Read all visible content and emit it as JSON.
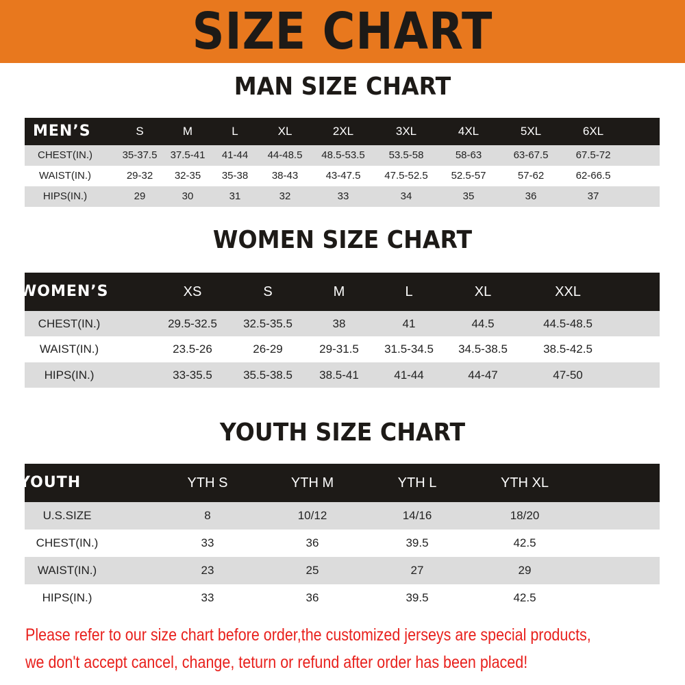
{
  "title": "SIZE CHART",
  "colors": {
    "banner": "#e8781e",
    "header_row": "#1d1a17",
    "alt_row": "#dcdcdc",
    "note": "#e8201c"
  },
  "men": {
    "title": "MAN SIZE CHART",
    "header": [
      "MEN’S",
      "S",
      "M",
      "L",
      "XL",
      "2XL",
      "3XL",
      "4XL",
      "5XL",
      "6XL"
    ],
    "rows": [
      [
        "CHEST(IN.)",
        "35-37.5",
        "37.5-41",
        "41-44",
        "44-48.5",
        "48.5-53.5",
        "53.5-58",
        "58-63",
        "63-67.5",
        "67.5-72"
      ],
      [
        "WAIST(IN.)",
        "29-32",
        "32-35",
        "35-38",
        "38-43",
        "43-47.5",
        "47.5-52.5",
        "52.5-57",
        "57-62",
        "62-66.5"
      ],
      [
        "HIPS(IN.)",
        "29",
        "30",
        "31",
        "32",
        "33",
        "34",
        "35",
        "36",
        "37"
      ]
    ]
  },
  "women": {
    "title": "WOMEN SIZE CHART",
    "header": [
      "WOMEN’S",
      "XS",
      "S",
      "M",
      "L",
      "XL",
      "XXL"
    ],
    "rows": [
      [
        "CHEST(IN.)",
        "29.5-32.5",
        "32.5-35.5",
        "38",
        "41",
        "44.5",
        "44.5-48.5"
      ],
      [
        "WAIST(IN.)",
        "23.5-26",
        "26-29",
        "29-31.5",
        "31.5-34.5",
        "34.5-38.5",
        "38.5-42.5"
      ],
      [
        "HIPS(IN.)",
        "33-35.5",
        "35.5-38.5",
        "38.5-41",
        "41-44",
        "44-47",
        "47-50"
      ]
    ]
  },
  "youth": {
    "title": "YOUTH SIZE CHART",
    "header": [
      "YOUTH",
      "YTH S",
      "YTH M",
      "YTH L",
      "YTH XL"
    ],
    "rows": [
      [
        "U.S.SIZE",
        "8",
        "10/12",
        "14/16",
        "18/20"
      ],
      [
        "CHEST(IN.)",
        "33",
        "36",
        "39.5",
        "42.5"
      ],
      [
        "WAIST(IN.)",
        "23",
        "25",
        "27",
        "29"
      ],
      [
        "HIPS(IN.)",
        "33",
        "36",
        "39.5",
        "42.5"
      ]
    ]
  },
  "notice": {
    "line1": "Please refer to our size chart before order,the customized jerseys are special products,",
    "line2": "we don't accept cancel, change, teturn or refund after order has been placed!"
  }
}
